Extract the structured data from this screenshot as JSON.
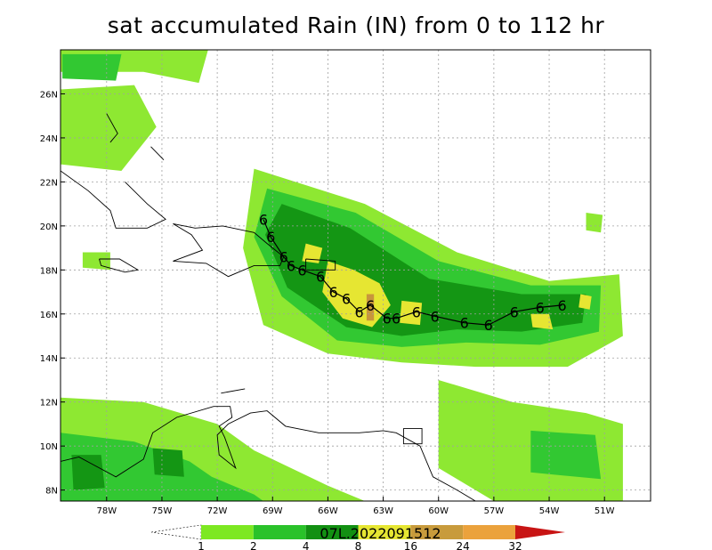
{
  "title": "sat accumulated Rain (IN) from 0 to 112 hr",
  "map": {
    "lon_range": [
      -80.5,
      -48.5
    ],
    "lat_range": [
      7.5,
      28
    ],
    "lat_ticks": [
      {
        "value": 8,
        "label": "8N"
      },
      {
        "value": 10,
        "label": "10N"
      },
      {
        "value": 12,
        "label": "12N"
      },
      {
        "value": 14,
        "label": "14N"
      },
      {
        "value": 16,
        "label": "16N"
      },
      {
        "value": 18,
        "label": "18N"
      },
      {
        "value": 20,
        "label": "20N"
      },
      {
        "value": 22,
        "label": "22N"
      },
      {
        "value": 24,
        "label": "24N"
      },
      {
        "value": 26,
        "label": "26N"
      }
    ],
    "lon_ticks": [
      {
        "value": -78,
        "label": "78W"
      },
      {
        "value": -75,
        "label": "75W"
      },
      {
        "value": -72,
        "label": "72W"
      },
      {
        "value": -69,
        "label": "69W"
      },
      {
        "value": -66,
        "label": "66W"
      },
      {
        "value": -63,
        "label": "63W"
      },
      {
        "value": -60,
        "label": "60W"
      },
      {
        "value": -57,
        "label": "57W"
      },
      {
        "value": -54,
        "label": "54W"
      },
      {
        "value": -51,
        "label": "51W"
      }
    ],
    "grid": true
  },
  "storm_track": {
    "id": "07L.2022091512",
    "symbol": "6",
    "points": [
      [
        -69.5,
        20.3
      ],
      [
        -69.1,
        19.5
      ],
      [
        -68.4,
        18.6
      ],
      [
        -68.0,
        18.2
      ],
      [
        -67.4,
        18.0
      ],
      [
        -66.4,
        17.7
      ],
      [
        -65.7,
        17.0
      ],
      [
        -65.0,
        16.7
      ],
      [
        -64.3,
        16.1
      ],
      [
        -63.7,
        16.4
      ],
      [
        -62.8,
        15.8
      ],
      [
        -62.3,
        15.8
      ],
      [
        -61.2,
        16.1
      ],
      [
        -60.2,
        15.9
      ],
      [
        -58.6,
        15.6
      ],
      [
        -57.3,
        15.5
      ],
      [
        -55.9,
        16.1
      ],
      [
        -54.5,
        16.3
      ],
      [
        -53.3,
        16.4
      ]
    ]
  },
  "colorbar": {
    "levels": [
      "1",
      "2",
      "4",
      "8",
      "16",
      "24",
      "32"
    ],
    "colors": [
      "#ffffff",
      "#7de822",
      "#2ac22a",
      "#129012",
      "#e6e632",
      "#c89b3c",
      "#eba23c",
      "#c81414"
    ]
  },
  "rain_colors": {
    "light": "#8ee832",
    "medium": "#32c832",
    "heavy": "#149614",
    "very_heavy": "#e6e632",
    "extreme": "#c8963c"
  },
  "rain_regions": [
    {
      "level": "light",
      "shape": [
        [
          -70,
          22.6
        ],
        [
          -64,
          21.0
        ],
        [
          -59,
          18.8
        ],
        [
          -54,
          17.5
        ],
        [
          -50.2,
          17.8
        ],
        [
          -50.0,
          15.0
        ],
        [
          -53,
          13.6
        ],
        [
          -58,
          13.6
        ],
        [
          -62,
          13.8
        ],
        [
          -66,
          14.2
        ],
        [
          -69.5,
          15.5
        ],
        [
          -70.6,
          19.0
        ]
      ]
    },
    {
      "level": "medium",
      "shape": [
        [
          -69.3,
          21.7
        ],
        [
          -64.5,
          20.6
        ],
        [
          -60,
          18.4
        ],
        [
          -55,
          17.3
        ],
        [
          -51.2,
          17.3
        ],
        [
          -51.3,
          15.2
        ],
        [
          -54.5,
          14.6
        ],
        [
          -58.5,
          14.7
        ],
        [
          -62,
          14.5
        ],
        [
          -65.5,
          14.8
        ],
        [
          -68.5,
          16.8
        ],
        [
          -70.0,
          19.5
        ]
      ]
    },
    {
      "level": "heavy",
      "shape": [
        [
          -68.5,
          21.0
        ],
        [
          -64.8,
          19.9
        ],
        [
          -60.5,
          17.6
        ],
        [
          -55.5,
          16.9
        ],
        [
          -52.0,
          16.9
        ],
        [
          -52.2,
          15.6
        ],
        [
          -55.5,
          15.2
        ],
        [
          -59.0,
          15.3
        ],
        [
          -62.0,
          15.0
        ],
        [
          -65.0,
          15.4
        ],
        [
          -68.2,
          17.2
        ],
        [
          -69.4,
          19.6
        ]
      ]
    },
    {
      "level": "very_heavy",
      "shape": [
        [
          -67.2,
          19.2
        ],
        [
          -66.3,
          19.0
        ],
        [
          -66.5,
          18.3
        ],
        [
          -67.4,
          18.4
        ]
      ]
    },
    {
      "level": "very_heavy",
      "shape": [
        [
          -66.0,
          18.4
        ],
        [
          -64.6,
          18.0
        ],
        [
          -63.2,
          17.4
        ],
        [
          -62.6,
          16.4
        ],
        [
          -63.6,
          15.4
        ],
        [
          -65.2,
          15.8
        ],
        [
          -66.3,
          17.0
        ]
      ]
    },
    {
      "level": "very_heavy",
      "shape": [
        [
          -62.0,
          16.6
        ],
        [
          -60.9,
          16.5
        ],
        [
          -61.0,
          15.5
        ],
        [
          -62.1,
          15.6
        ]
      ]
    },
    {
      "level": "very_heavy",
      "shape": [
        [
          -55.0,
          16.0
        ],
        [
          -54.0,
          16.0
        ],
        [
          -53.8,
          15.3
        ],
        [
          -54.9,
          15.4
        ]
      ]
    },
    {
      "level": "very_heavy",
      "shape": [
        [
          -52.3,
          16.9
        ],
        [
          -51.7,
          16.8
        ],
        [
          -51.8,
          16.2
        ],
        [
          -52.4,
          16.3
        ]
      ]
    },
    {
      "level": "extreme",
      "shape": [
        [
          -63.9,
          16.9
        ],
        [
          -63.5,
          16.9
        ],
        [
          -63.5,
          15.7
        ],
        [
          -63.9,
          15.7
        ]
      ]
    },
    {
      "level": "light",
      "shape": [
        [
          -80.5,
          12.2
        ],
        [
          -76,
          12.0
        ],
        [
          -72,
          11.0
        ],
        [
          -70,
          9.8
        ],
        [
          -66,
          8.2
        ],
        [
          -64,
          7.5
        ],
        [
          -80.5,
          7.5
        ]
      ]
    },
    {
      "level": "medium",
      "shape": [
        [
          -80.5,
          10.6
        ],
        [
          -76.5,
          10.2
        ],
        [
          -73.5,
          9.3
        ],
        [
          -72.3,
          8.6
        ],
        [
          -70,
          7.8
        ],
        [
          -69.5,
          7.5
        ],
        [
          -80.5,
          7.5
        ]
      ]
    },
    {
      "level": "heavy",
      "shape": [
        [
          -79.9,
          9.6
        ],
        [
          -78.3,
          9.6
        ],
        [
          -78.1,
          8.1
        ],
        [
          -79.8,
          8.0
        ]
      ]
    },
    {
      "level": "heavy",
      "shape": [
        [
          -75.5,
          9.9
        ],
        [
          -73.9,
          9.8
        ],
        [
          -73.8,
          8.6
        ],
        [
          -75.4,
          8.7
        ]
      ]
    },
    {
      "level": "light",
      "shape": [
        [
          -60,
          13.0
        ],
        [
          -56,
          12.0
        ],
        [
          -52,
          11.5
        ],
        [
          -50.0,
          11.0
        ],
        [
          -50.0,
          7.5
        ],
        [
          -57,
          7.5
        ],
        [
          -60,
          9.0
        ]
      ]
    },
    {
      "level": "medium",
      "shape": [
        [
          -55,
          10.7
        ],
        [
          -51.5,
          10.5
        ],
        [
          -51.2,
          8.5
        ],
        [
          -55.0,
          8.8
        ]
      ]
    },
    {
      "level": "light",
      "shape": [
        [
          -80.5,
          26.2
        ],
        [
          -76.5,
          26.4
        ],
        [
          -75.3,
          24.5
        ],
        [
          -77.2,
          22.5
        ],
        [
          -80.5,
          22.8
        ]
      ]
    },
    {
      "level": "light",
      "shape": [
        [
          -80.5,
          28.0
        ],
        [
          -72.5,
          28.0
        ],
        [
          -73.0,
          26.5
        ],
        [
          -76.0,
          27.0
        ],
        [
          -80.5,
          27.0
        ]
      ]
    },
    {
      "level": "medium",
      "shape": [
        [
          -80.4,
          27.8
        ],
        [
          -77.2,
          27.8
        ],
        [
          -77.5,
          26.6
        ],
        [
          -80.4,
          26.7
        ]
      ]
    },
    {
      "level": "light",
      "shape": [
        [
          -79.3,
          18.8
        ],
        [
          -77.8,
          18.8
        ],
        [
          -77.8,
          18.0
        ],
        [
          -79.3,
          18.1
        ]
      ]
    },
    {
      "level": "light",
      "shape": [
        [
          -52.0,
          20.6
        ],
        [
          -51.1,
          20.5
        ],
        [
          -51.2,
          19.7
        ],
        [
          -52.0,
          19.8
        ]
      ]
    }
  ],
  "coastlines": [
    [
      [
        -77.0,
        22.0
      ],
      [
        -75.8,
        21.0
      ],
      [
        -74.8,
        20.3
      ],
      [
        -75.8,
        19.9
      ],
      [
        -77.5,
        19.9
      ],
      [
        -77.8,
        20.7
      ],
      [
        -79.0,
        21.6
      ],
      [
        -80.5,
        22.5
      ]
    ],
    [
      [
        -78.4,
        18.5
      ],
      [
        -77.3,
        18.5
      ],
      [
        -76.3,
        18.0
      ],
      [
        -77.0,
        17.9
      ],
      [
        -78.3,
        18.2
      ],
      [
        -78.4,
        18.5
      ]
    ],
    [
      [
        -74.4,
        20.1
      ],
      [
        -73.2,
        19.9
      ],
      [
        -71.7,
        20.0
      ],
      [
        -70.0,
        19.7
      ],
      [
        -69.3,
        19.2
      ],
      [
        -68.4,
        18.6
      ],
      [
        -68.6,
        18.2
      ],
      [
        -70.0,
        18.2
      ],
      [
        -71.4,
        17.7
      ],
      [
        -72.6,
        18.3
      ],
      [
        -74.4,
        18.4
      ],
      [
        -72.8,
        18.9
      ],
      [
        -73.4,
        19.6
      ],
      [
        -74.4,
        20.1
      ]
    ],
    [
      [
        -67.2,
        18.5
      ],
      [
        -65.6,
        18.4
      ],
      [
        -65.6,
        18.0
      ],
      [
        -67.2,
        18.0
      ],
      [
        -67.2,
        18.5
      ]
    ],
    [
      [
        -61.9,
        10.8
      ],
      [
        -60.9,
        10.8
      ],
      [
        -60.9,
        10.1
      ],
      [
        -61.9,
        10.1
      ],
      [
        -61.9,
        10.8
      ]
    ],
    [
      [
        -80.5,
        9.3
      ],
      [
        -79.5,
        9.5
      ],
      [
        -77.5,
        8.6
      ],
      [
        -76.0,
        9.4
      ],
      [
        -75.5,
        10.6
      ],
      [
        -74.2,
        11.3
      ],
      [
        -72.2,
        11.8
      ],
      [
        -71.3,
        11.8
      ],
      [
        -71.2,
        11.3
      ],
      [
        -71.9,
        10.9
      ],
      [
        -71.6,
        10.4
      ],
      [
        -71.0,
        9.0
      ],
      [
        -71.9,
        9.6
      ],
      [
        -72.0,
        10.5
      ],
      [
        -71.4,
        11.0
      ],
      [
        -70.2,
        11.5
      ],
      [
        -69.3,
        11.6
      ],
      [
        -68.3,
        10.9
      ],
      [
        -66.5,
        10.6
      ],
      [
        -64.3,
        10.6
      ],
      [
        -63.0,
        10.7
      ],
      [
        -62.3,
        10.6
      ],
      [
        -61.0,
        10.0
      ],
      [
        -60.3,
        8.6
      ],
      [
        -59.0,
        8.0
      ],
      [
        -58.0,
        7.5
      ]
    ],
    [
      [
        -71.8,
        12.4
      ],
      [
        -70.5,
        12.6
      ]
    ],
    [
      [
        -78.0,
        25.1
      ],
      [
        -77.4,
        24.2
      ],
      [
        -77.8,
        23.8
      ]
    ],
    [
      [
        -75.6,
        23.6
      ],
      [
        -74.9,
        23.0
      ]
    ]
  ]
}
